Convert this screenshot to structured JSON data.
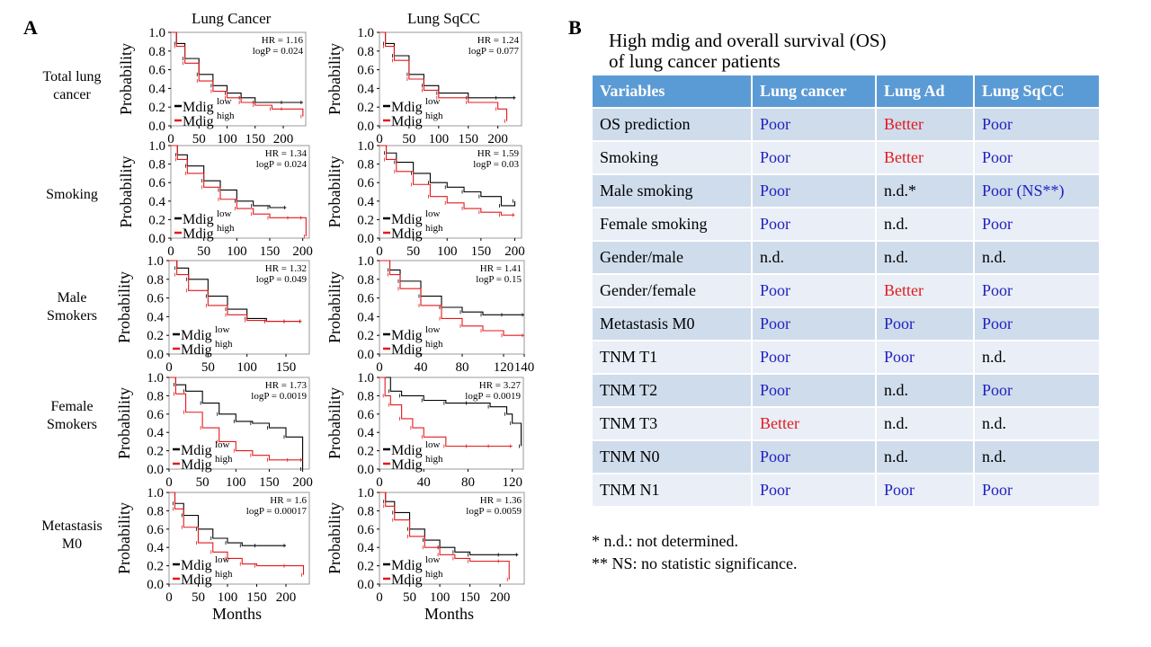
{
  "panel_a": {
    "letter": "A",
    "columns": [
      "Lung Cancer",
      "Lung SqCC"
    ],
    "rows": [
      {
        "label_lines": [
          "Total lung",
          "cancer"
        ]
      },
      {
        "label_lines": [
          "Smoking"
        ]
      },
      {
        "label_lines": [
          "Male",
          "Smokers"
        ]
      },
      {
        "label_lines": [
          "Female",
          "Smokers"
        ]
      },
      {
        "label_lines": [
          "Metastasis",
          "M0"
        ]
      }
    ],
    "xlabel": "Months",
    "ylabel": "Probability",
    "legend": {
      "low": "Mdig",
      "low_sup": "low",
      "high": "Mdig",
      "high_sup": "high"
    }
  },
  "chart_data": [
    {
      "type": "line",
      "group": "Lung Cancer",
      "subset": "Total lung cancer",
      "hr": "HR = 1.16",
      "logp": "logP = 0.024",
      "xlim": [
        0,
        240
      ],
      "xticks": [
        0,
        50,
        100,
        150,
        200
      ],
      "ylim": [
        0,
        1
      ],
      "yticks": [
        "0.0",
        "0.2",
        "0.4",
        "0.6",
        "0.8",
        "1.0"
      ],
      "ylabel": "Probability",
      "series": [
        {
          "name": "Mdig low",
          "color": "#000000",
          "x": [
            0,
            10,
            25,
            50,
            75,
            100,
            125,
            150,
            200,
            235
          ],
          "y": [
            1.0,
            0.88,
            0.72,
            0.55,
            0.43,
            0.35,
            0.3,
            0.25,
            0.25,
            0.25
          ]
        },
        {
          "name": "Mdig high",
          "color": "#e3191c",
          "x": [
            0,
            10,
            25,
            50,
            75,
            100,
            125,
            150,
            180,
            200,
            235
          ],
          "y": [
            1.0,
            0.85,
            0.67,
            0.48,
            0.37,
            0.3,
            0.25,
            0.22,
            0.18,
            0.18,
            0.1
          ]
        }
      ]
    },
    {
      "type": "line",
      "group": "Lung SqCC",
      "subset": "Total lung cancer",
      "hr": "HR = 1.24",
      "logp": "logP = 0.077",
      "xlim": [
        0,
        240
      ],
      "xticks": [
        0,
        50,
        100,
        150,
        200
      ],
      "ylim": [
        0,
        1
      ],
      "yticks": [
        "0.0",
        "0.2",
        "0.4",
        "0.6",
        "0.8",
        "1.0"
      ],
      "ylabel": "Probability",
      "series": [
        {
          "name": "Mdig low",
          "color": "#000000",
          "x": [
            0,
            10,
            25,
            50,
            75,
            100,
            150,
            200,
            230
          ],
          "y": [
            1.0,
            0.88,
            0.75,
            0.55,
            0.43,
            0.35,
            0.3,
            0.3,
            0.3
          ]
        },
        {
          "name": "Mdig high",
          "color": "#e3191c",
          "x": [
            0,
            10,
            25,
            50,
            75,
            100,
            150,
            200,
            215
          ],
          "y": [
            1.0,
            0.85,
            0.7,
            0.5,
            0.38,
            0.3,
            0.25,
            0.18,
            0.05
          ]
        }
      ]
    },
    {
      "type": "line",
      "group": "Lung Cancer",
      "subset": "Smoking",
      "hr": "HR = 1.34",
      "logp": "logP = 0.024",
      "xlim": [
        0,
        210
      ],
      "xticks": [
        0,
        50,
        100,
        150,
        200
      ],
      "ylim": [
        0,
        1
      ],
      "yticks": [
        "0.0",
        "0.2",
        "0.4",
        "0.6",
        "0.8",
        "1.0"
      ],
      "ylabel": "Probability",
      "series": [
        {
          "name": "Mdig low",
          "color": "#000000",
          "x": [
            0,
            10,
            25,
            50,
            75,
            100,
            125,
            150,
            175
          ],
          "y": [
            1.0,
            0.9,
            0.78,
            0.62,
            0.52,
            0.4,
            0.35,
            0.33,
            0.33
          ]
        },
        {
          "name": "Mdig high",
          "color": "#e3191c",
          "x": [
            0,
            10,
            25,
            50,
            75,
            100,
            125,
            150,
            180,
            200,
            205
          ],
          "y": [
            1.0,
            0.85,
            0.7,
            0.55,
            0.42,
            0.32,
            0.26,
            0.22,
            0.22,
            0.22,
            0.02
          ]
        }
      ]
    },
    {
      "type": "line",
      "group": "Lung SqCC",
      "subset": "Smoking",
      "hr": "HR = 1.59",
      "logp": "logP = 0.03",
      "xlim": [
        0,
        210
      ],
      "xticks": [
        0,
        50,
        100,
        150,
        200
      ],
      "ylim": [
        0,
        1
      ],
      "yticks": [
        "0.0",
        "0.2",
        "0.4",
        "0.6",
        "0.8",
        "1.0"
      ],
      "ylabel": "Probability",
      "series": [
        {
          "name": "Mdig low",
          "color": "#000000",
          "x": [
            0,
            10,
            25,
            50,
            75,
            100,
            125,
            150,
            180,
            200
          ],
          "y": [
            1.0,
            0.92,
            0.82,
            0.7,
            0.6,
            0.55,
            0.5,
            0.45,
            0.35,
            0.4
          ]
        },
        {
          "name": "Mdig high",
          "color": "#e3191c",
          "x": [
            0,
            10,
            25,
            50,
            75,
            100,
            125,
            150,
            180,
            200
          ],
          "y": [
            1.0,
            0.85,
            0.72,
            0.58,
            0.45,
            0.38,
            0.32,
            0.28,
            0.25,
            0.25
          ]
        }
      ]
    },
    {
      "type": "line",
      "group": "Lung Cancer",
      "subset": "Male Smokers",
      "hr": "HR = 1.32",
      "logp": "logP = 0.049",
      "xlim": [
        0,
        180
      ],
      "xticks": [
        0,
        50,
        100,
        150
      ],
      "ylim": [
        0,
        1
      ],
      "yticks": [
        "0.0",
        "0.2",
        "0.4",
        "0.6",
        "0.8",
        "1.0"
      ],
      "ylabel": "Probability",
      "series": [
        {
          "name": "Mdig low",
          "color": "#000000",
          "x": [
            0,
            10,
            25,
            50,
            75,
            100,
            125,
            150,
            170
          ],
          "y": [
            1.0,
            0.92,
            0.8,
            0.62,
            0.48,
            0.38,
            0.35,
            0.35,
            0.35
          ]
        },
        {
          "name": "Mdig high",
          "color": "#e3191c",
          "x": [
            0,
            10,
            25,
            50,
            75,
            100,
            125,
            150,
            170
          ],
          "y": [
            1.0,
            0.85,
            0.68,
            0.52,
            0.42,
            0.36,
            0.35,
            0.35,
            0.35
          ]
        }
      ]
    },
    {
      "type": "line",
      "group": "Lung SqCC",
      "subset": "Male Smokers",
      "hr": "HR = 1.41",
      "logp": "logP = 0.15",
      "xlim": [
        0,
        140
      ],
      "xticks": [
        0,
        40,
        80,
        120,
        140
      ],
      "ylim": [
        0,
        1
      ],
      "yticks": [
        "0.0",
        "0.2",
        "0.4",
        "0.6",
        "0.8",
        "1.0"
      ],
      "ylabel": "Probability",
      "series": [
        {
          "name": "Mdig low",
          "color": "#000000",
          "x": [
            0,
            10,
            20,
            40,
            60,
            80,
            100,
            120,
            140
          ],
          "y": [
            1.0,
            0.9,
            0.78,
            0.62,
            0.5,
            0.45,
            0.42,
            0.42,
            0.42
          ]
        },
        {
          "name": "Mdig high",
          "color": "#e3191c",
          "x": [
            0,
            10,
            20,
            40,
            60,
            80,
            100,
            120,
            140
          ],
          "y": [
            1.0,
            0.85,
            0.7,
            0.52,
            0.38,
            0.3,
            0.25,
            0.2,
            0.2
          ]
        }
      ]
    },
    {
      "type": "line",
      "group": "Lung Cancer",
      "subset": "Female Smokers",
      "hr": "HR = 1.73",
      "logp": "logP = 0.0019",
      "xlim": [
        0,
        210
      ],
      "xticks": [
        0,
        50,
        100,
        150,
        200
      ],
      "ylim": [
        0,
        1
      ],
      "yticks": [
        "0.0",
        "0.2",
        "0.4",
        "0.6",
        "0.8",
        "1.0"
      ],
      "ylabel": "Probability",
      "series": [
        {
          "name": "Mdig low",
          "color": "#000000",
          "x": [
            0,
            10,
            25,
            50,
            75,
            100,
            125,
            150,
            175,
            200
          ],
          "y": [
            1.0,
            0.92,
            0.85,
            0.72,
            0.6,
            0.52,
            0.5,
            0.45,
            0.35,
            0.0
          ]
        },
        {
          "name": "Mdig high",
          "color": "#e3191c",
          "x": [
            0,
            10,
            25,
            50,
            75,
            100,
            125,
            150,
            180,
            200
          ],
          "y": [
            1.0,
            0.82,
            0.62,
            0.45,
            0.3,
            0.2,
            0.15,
            0.1,
            0.1,
            0.1
          ]
        }
      ]
    },
    {
      "type": "line",
      "group": "Lung SqCC",
      "subset": "Female Smokers",
      "hr": "HR = 3.27",
      "logp": "logP = 0.0019",
      "xlim": [
        0,
        130
      ],
      "xticks": [
        0,
        40,
        80,
        120
      ],
      "ylim": [
        0,
        1
      ],
      "yticks": [
        "0.0",
        "0.2",
        "0.4",
        "0.6",
        "0.8",
        "1.0"
      ],
      "ylabel": "Probability",
      "series": [
        {
          "name": "Mdig low",
          "color": "#000000",
          "x": [
            0,
            10,
            20,
            40,
            60,
            80,
            100,
            115,
            120,
            128
          ],
          "y": [
            1.0,
            0.85,
            0.8,
            0.75,
            0.72,
            0.72,
            0.68,
            0.6,
            0.5,
            0.25
          ]
        },
        {
          "name": "Mdig high",
          "color": "#e3191c",
          "x": [
            0,
            5,
            10,
            20,
            30,
            40,
            60,
            80,
            100,
            120
          ],
          "y": [
            1.0,
            0.8,
            0.7,
            0.55,
            0.45,
            0.35,
            0.25,
            0.25,
            0.25,
            0.25
          ]
        }
      ]
    },
    {
      "type": "line",
      "group": "Lung Cancer",
      "subset": "Metastasis M0",
      "hr": "HR = 1.6",
      "logp": "logP = 0.00017",
      "xlim": [
        0,
        240
      ],
      "xticks": [
        0,
        50,
        100,
        150,
        200
      ],
      "ylim": [
        0,
        1
      ],
      "yticks": [
        "0.0",
        "0.2",
        "0.4",
        "0.6",
        "0.8",
        "1.0"
      ],
      "ylabel": "Probability",
      "series": [
        {
          "name": "Mdig low",
          "color": "#000000",
          "x": [
            0,
            10,
            25,
            50,
            75,
            100,
            125,
            150,
            200
          ],
          "y": [
            1.0,
            0.88,
            0.75,
            0.6,
            0.5,
            0.45,
            0.42,
            0.42,
            0.42
          ]
        },
        {
          "name": "Mdig high",
          "color": "#e3191c",
          "x": [
            0,
            10,
            25,
            50,
            75,
            100,
            125,
            150,
            200,
            230
          ],
          "y": [
            1.0,
            0.82,
            0.62,
            0.45,
            0.35,
            0.28,
            0.22,
            0.2,
            0.2,
            0.1
          ]
        }
      ]
    },
    {
      "type": "line",
      "group": "Lung SqCC",
      "subset": "Metastasis M0",
      "hr": "HR = 1.36",
      "logp": "logP = 0.0059",
      "xlim": [
        0,
        240
      ],
      "xticks": [
        0,
        50,
        100,
        150,
        200
      ],
      "ylim": [
        0,
        1
      ],
      "yticks": [
        "0.0",
        "0.2",
        "0.4",
        "0.6",
        "0.8",
        "1.0"
      ],
      "ylabel": "Probability",
      "series": [
        {
          "name": "Mdig low",
          "color": "#000000",
          "x": [
            0,
            10,
            25,
            50,
            75,
            100,
            125,
            150,
            200,
            230
          ],
          "y": [
            1.0,
            0.9,
            0.78,
            0.6,
            0.48,
            0.4,
            0.35,
            0.32,
            0.32,
            0.32
          ]
        },
        {
          "name": "Mdig high",
          "color": "#e3191c",
          "x": [
            0,
            10,
            25,
            50,
            75,
            100,
            125,
            150,
            200,
            215
          ],
          "y": [
            1.0,
            0.85,
            0.7,
            0.52,
            0.4,
            0.32,
            0.28,
            0.25,
            0.25,
            0.05
          ]
        }
      ]
    }
  ],
  "panel_b": {
    "letter": "B",
    "title_line1": "High mdig and overall survival (OS)",
    "title_line2": "of  lung cancer patients",
    "headers": [
      "Variables",
      "Lung cancer",
      "Lung Ad",
      "Lung SqCC"
    ],
    "rows": [
      [
        "OS prediction",
        "Poor",
        "Better",
        "Poor"
      ],
      [
        "Smoking",
        "Poor",
        "Better",
        "Poor"
      ],
      [
        "Male smoking",
        "Poor",
        "n.d.*",
        "Poor (NS**)"
      ],
      [
        "Female smoking",
        "Poor",
        "n.d.",
        "Poor"
      ],
      [
        "Gender/male",
        "n.d.",
        "n.d.",
        "n.d."
      ],
      [
        "Gender/female",
        "Poor",
        "Better",
        "Poor"
      ],
      [
        "Metastasis  M0",
        "Poor",
        "Poor",
        "Poor"
      ],
      [
        "TNM  T1",
        "Poor",
        "Poor",
        "n.d."
      ],
      [
        "TNM  T2",
        "Poor",
        "n.d.",
        "Poor"
      ],
      [
        "TNM  T3",
        "Better",
        "n.d.",
        "n.d."
      ],
      [
        "TNM  N0",
        "Poor",
        "n.d.",
        "n.d."
      ],
      [
        "TNM  N1",
        "Poor",
        "Poor",
        "Poor"
      ]
    ],
    "footnotes": [
      "* n.d.: not determined.",
      "** NS: no statistic significance."
    ],
    "colors": {
      "Poor": "#1f1fbf",
      "Better": "#e3191c",
      "nd": "#000000",
      "header_bg": "#5b9bd5"
    }
  }
}
